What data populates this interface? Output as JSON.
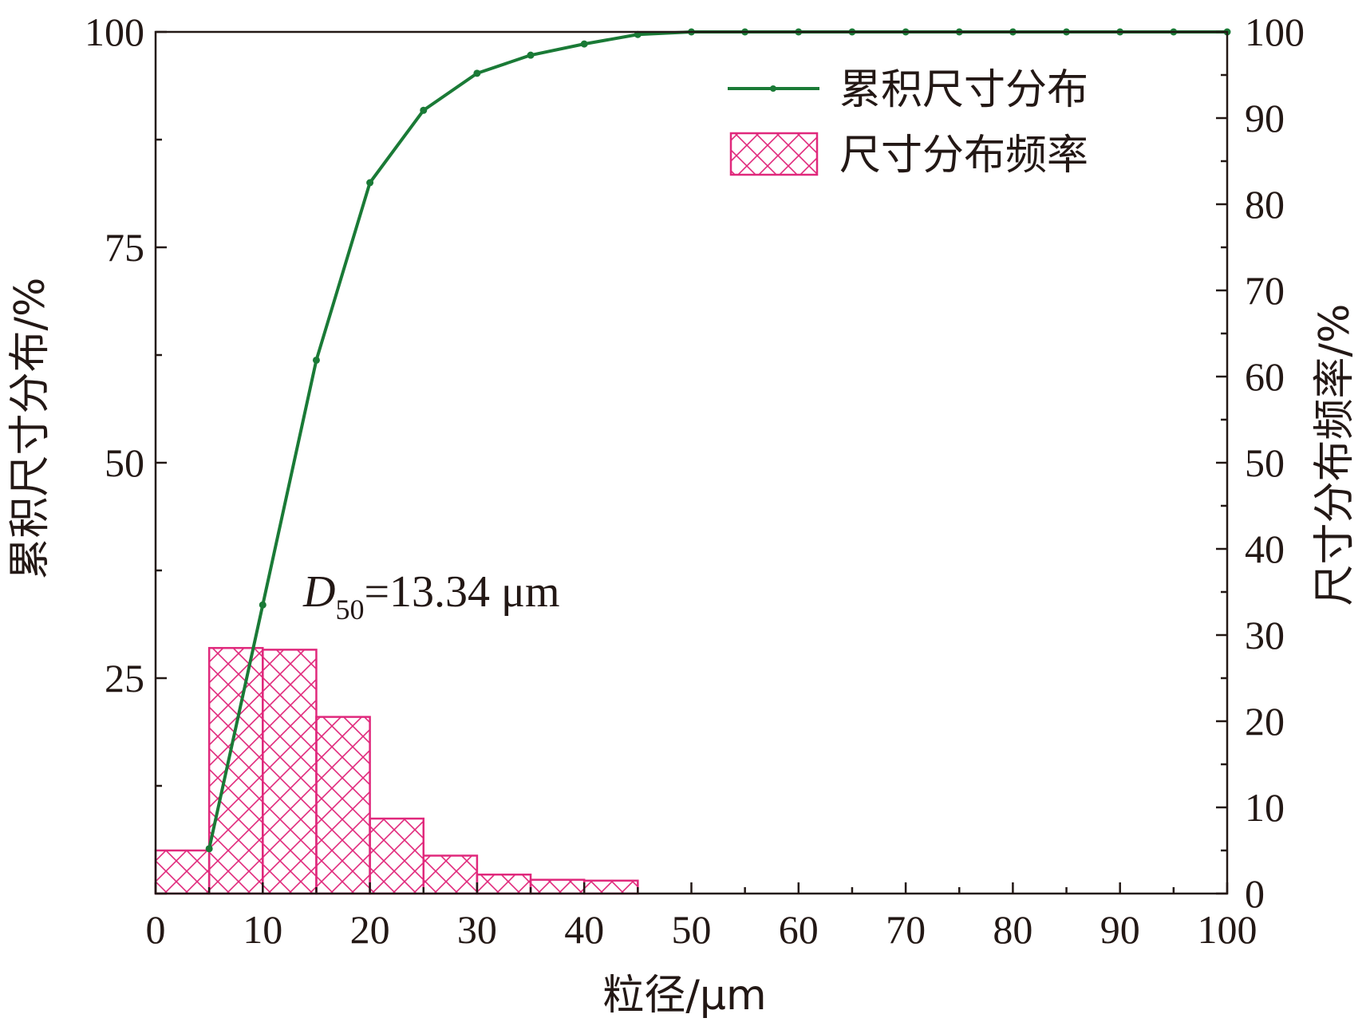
{
  "chart_data": {
    "type": "bar+line",
    "xlabel": "粒径/μm",
    "ylabel_left": "累积尺寸分布/%",
    "ylabel_right": "尺寸分布频率/%",
    "xlim": [
      0,
      100
    ],
    "ylim_left": [
      0,
      100
    ],
    "ylim_right": [
      0,
      100
    ],
    "x_ticks": [
      "0",
      "10",
      "20",
      "30",
      "40",
      "50",
      "60",
      "70",
      "80",
      "90",
      "100"
    ],
    "y_left_ticks": [
      "25",
      "50",
      "75",
      "100"
    ],
    "y_right_ticks": [
      "0",
      "10",
      "20",
      "30",
      "40",
      "50",
      "60",
      "70",
      "80",
      "90",
      "100"
    ],
    "legend_position": "top-right",
    "annotation": {
      "prefix": "D",
      "subscript": "50",
      "text": "=13.34 μm"
    },
    "series": [
      {
        "name": "累积尺寸分布",
        "type": "line",
        "axis": "left",
        "color": "#1a7a36",
        "x": [
          5,
          10,
          15,
          20,
          25,
          30,
          35,
          40,
          45,
          50,
          55,
          60,
          65,
          70,
          75,
          80,
          85,
          90,
          95,
          100
        ],
        "values": [
          5.2,
          33.5,
          61.9,
          82.5,
          90.9,
          95.2,
          97.3,
          98.6,
          99.7,
          100,
          100,
          100,
          100,
          100,
          100,
          100,
          100,
          100,
          100,
          100
        ]
      },
      {
        "name": "尺寸分布频率",
        "type": "bar",
        "axis": "right",
        "color": "#e0297c",
        "bin_edges": [
          0,
          5,
          10,
          15,
          20,
          25,
          30,
          35,
          40,
          45
        ],
        "values": [
          5.0,
          28.5,
          28.3,
          20.5,
          8.7,
          4.4,
          2.2,
          1.6,
          1.5
        ]
      }
    ]
  }
}
